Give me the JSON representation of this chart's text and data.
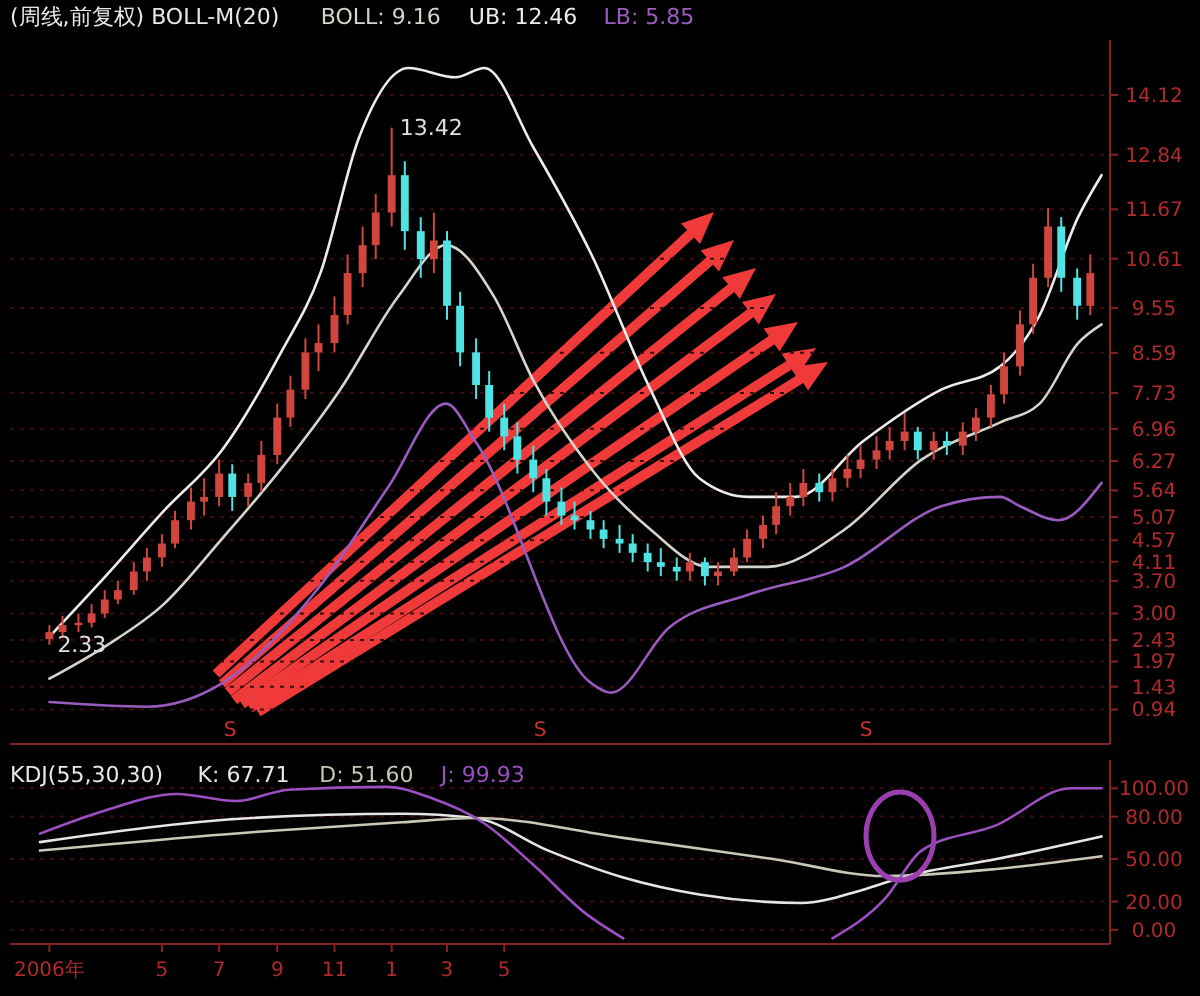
{
  "chart_data": [
    {
      "type": "candlestick",
      "title": "(周线,前复权) BOLL-M(20)",
      "legend": "top left",
      "grid": "y",
      "tick_labels": "y",
      "xlim": [
        "2005-11-20",
        "2009-02-05"
      ],
      "ylim": [
        0.2,
        15.3
      ],
      "yticks": [
        {
          "value": 0.94,
          "label": "0.94"
        },
        {
          "value": 1.43,
          "label": "1.43"
        },
        {
          "value": 1.97,
          "label": "1.97"
        },
        {
          "value": 2.43,
          "label": "2.43"
        },
        {
          "value": 3,
          "label": "3.00"
        },
        {
          "value": 3.7,
          "label": "3.70"
        },
        {
          "value": 4.11,
          "label": "4.11"
        },
        {
          "value": 4.57,
          "label": "4.57"
        },
        {
          "value": 5.07,
          "label": "5.07"
        },
        {
          "value": 5.64,
          "label": "5.64"
        },
        {
          "value": 6.27,
          "label": "6.27"
        },
        {
          "value": 6.96,
          "label": "6.96"
        },
        {
          "value": 7.73,
          "label": "7.73"
        },
        {
          "value": 8.59,
          "label": "8.59"
        },
        {
          "value": 9.55,
          "label": "9.55"
        },
        {
          "value": 10.61,
          "label": "10.61"
        },
        {
          "value": 11.67,
          "label": "11.67"
        },
        {
          "value": 12.84,
          "label": "12.84"
        },
        {
          "value": 14.12,
          "label": "14.12"
        }
      ],
      "x": [
        "2006-01-01",
        "2006-01-15",
        "2006-02-01",
        "2006-02-15",
        "2006-03-01",
        "2006-03-15",
        "2006-04-01",
        "2006-04-15",
        "2006-05-01",
        "2006-05-15",
        "2006-06-01",
        "2006-06-15",
        "2006-07-01",
        "2006-07-15",
        "2006-08-01",
        "2006-08-15",
        "2006-09-01",
        "2006-09-15",
        "2006-10-01",
        "2006-10-15",
        "2006-11-01",
        "2006-11-15",
        "2006-12-01",
        "2006-12-15",
        "2007-01-01",
        "2007-01-15",
        "2007-02-01",
        "2007-02-15",
        "2007-03-01",
        "2007-03-15",
        "2007-04-01",
        "2007-04-15",
        "2007-05-01",
        "2007-05-15",
        "2007-06-01",
        "2007-06-15",
        "2007-07-01",
        "2007-07-15",
        "2007-08-01",
        "2007-08-15",
        "2007-09-01",
        "2007-09-15",
        "2007-10-01",
        "2007-10-15",
        "2007-11-01",
        "2007-11-15",
        "2007-12-01",
        "2007-12-15",
        "2008-01-01",
        "2008-01-15",
        "2008-02-01",
        "2008-02-15",
        "2008-03-01",
        "2008-03-15",
        "2008-04-01",
        "2008-04-15",
        "2008-05-01",
        "2008-05-15",
        "2008-06-01",
        "2008-06-15",
        "2008-07-01",
        "2008-07-15",
        "2008-08-01",
        "2008-08-15",
        "2008-09-01",
        "2008-09-15",
        "2008-10-01",
        "2008-10-15",
        "2008-11-01",
        "2008-11-15",
        "2008-12-01",
        "2008-12-15",
        "2009-01-01",
        "2009-01-15"
      ],
      "ohlc": [
        [
          2.45,
          2.75,
          2.33,
          2.6
        ],
        [
          2.6,
          2.95,
          2.5,
          2.75
        ],
        [
          2.75,
          3.0,
          2.6,
          2.8
        ],
        [
          2.8,
          3.2,
          2.7,
          3.0
        ],
        [
          3.0,
          3.5,
          2.9,
          3.3
        ],
        [
          3.3,
          3.7,
          3.2,
          3.5
        ],
        [
          3.5,
          4.1,
          3.4,
          3.9
        ],
        [
          3.9,
          4.4,
          3.7,
          4.2
        ],
        [
          4.2,
          4.7,
          4.0,
          4.5
        ],
        [
          4.5,
          5.2,
          4.4,
          5.0
        ],
        [
          5.0,
          5.7,
          4.8,
          5.4
        ],
        [
          5.4,
          5.9,
          5.1,
          5.5
        ],
        [
          5.5,
          6.3,
          5.3,
          6.0
        ],
        [
          6.0,
          6.2,
          5.2,
          5.5
        ],
        [
          5.5,
          6.0,
          5.3,
          5.8
        ],
        [
          5.8,
          6.7,
          5.6,
          6.4
        ],
        [
          6.4,
          7.5,
          6.2,
          7.2
        ],
        [
          7.2,
          8.1,
          7.0,
          7.8
        ],
        [
          7.8,
          8.9,
          7.6,
          8.6
        ],
        [
          8.6,
          9.2,
          8.2,
          8.8
        ],
        [
          8.8,
          9.8,
          8.6,
          9.4
        ],
        [
          9.4,
          10.7,
          9.2,
          10.3
        ],
        [
          10.3,
          11.3,
          10.0,
          10.9
        ],
        [
          10.9,
          12.0,
          10.6,
          11.6
        ],
        [
          11.6,
          13.42,
          11.3,
          12.4
        ],
        [
          12.4,
          12.7,
          10.8,
          11.2
        ],
        [
          11.2,
          11.5,
          10.2,
          10.6
        ],
        [
          10.6,
          11.6,
          10.3,
          11.0
        ],
        [
          11.0,
          11.2,
          9.3,
          9.6
        ],
        [
          9.6,
          9.9,
          8.3,
          8.6
        ],
        [
          8.6,
          8.9,
          7.6,
          7.9
        ],
        [
          7.9,
          8.2,
          6.9,
          7.2
        ],
        [
          7.2,
          7.5,
          6.5,
          6.8
        ],
        [
          6.8,
          7.1,
          6.0,
          6.3
        ],
        [
          6.3,
          6.6,
          5.6,
          5.9
        ],
        [
          5.9,
          6.1,
          5.1,
          5.4
        ],
        [
          5.4,
          5.7,
          4.9,
          5.1
        ],
        [
          5.1,
          5.4,
          4.8,
          5.0
        ],
        [
          5.0,
          5.2,
          4.6,
          4.8
        ],
        [
          4.8,
          5.0,
          4.4,
          4.6
        ],
        [
          4.6,
          4.9,
          4.3,
          4.5
        ],
        [
          4.5,
          4.7,
          4.1,
          4.3
        ],
        [
          4.3,
          4.5,
          3.9,
          4.1
        ],
        [
          4.1,
          4.4,
          3.8,
          4.0
        ],
        [
          4.0,
          4.2,
          3.7,
          3.9
        ],
        [
          3.9,
          4.3,
          3.7,
          4.1
        ],
        [
          4.1,
          4.2,
          3.6,
          3.8
        ],
        [
          3.8,
          4.1,
          3.6,
          3.9
        ],
        [
          3.9,
          4.4,
          3.8,
          4.2
        ],
        [
          4.2,
          4.8,
          4.1,
          4.6
        ],
        [
          4.6,
          5.1,
          4.4,
          4.9
        ],
        [
          4.9,
          5.6,
          4.7,
          5.3
        ],
        [
          5.3,
          5.8,
          5.1,
          5.5
        ],
        [
          5.5,
          6.1,
          5.3,
          5.8
        ],
        [
          5.8,
          6.0,
          5.4,
          5.6
        ],
        [
          5.6,
          6.1,
          5.4,
          5.9
        ],
        [
          5.9,
          6.4,
          5.7,
          6.1
        ],
        [
          6.1,
          6.6,
          5.9,
          6.3
        ],
        [
          6.3,
          6.8,
          6.1,
          6.5
        ],
        [
          6.5,
          7.0,
          6.3,
          6.7
        ],
        [
          6.7,
          7.3,
          6.5,
          6.9
        ],
        [
          6.9,
          7.0,
          6.3,
          6.5
        ],
        [
          6.5,
          6.9,
          6.3,
          6.7
        ],
        [
          6.7,
          6.9,
          6.4,
          6.6
        ],
        [
          6.6,
          7.1,
          6.4,
          6.9
        ],
        [
          6.9,
          7.4,
          6.7,
          7.2
        ],
        [
          7.2,
          7.9,
          7.0,
          7.7
        ],
        [
          7.7,
          8.6,
          7.5,
          8.3
        ],
        [
          8.3,
          9.5,
          8.1,
          9.2
        ],
        [
          9.2,
          10.5,
          9.0,
          10.2
        ],
        [
          10.2,
          11.7,
          10.0,
          11.3
        ],
        [
          11.3,
          11.5,
          9.9,
          10.2
        ],
        [
          10.2,
          10.4,
          9.3,
          9.6
        ],
        [
          9.6,
          10.7,
          9.4,
          10.3
        ]
      ],
      "series": [
        {
          "name": "BOLL: 9.16",
          "type": "line",
          "color": "#d4d4cc",
          "x": [
            "2006-01-01",
            "2006-03-02",
            "2006-05-03",
            "2006-07-04",
            "2006-09-05",
            "2006-11-07",
            "2007-01-08",
            "2007-02-28",
            "2007-04-20",
            "2007-06-01",
            "2007-08-02",
            "2007-10-04",
            "2007-12-05",
            "2008-02-06",
            "2008-04-28",
            "2008-07-19",
            "2008-10-11",
            "2008-11-22",
            "2009-01-02",
            "2009-01-27"
          ],
          "values": [
            1.6,
            2.3,
            3.2,
            4.6,
            6.1,
            7.8,
            9.8,
            10.9,
            9.8,
            8.0,
            6.1,
            4.8,
            4.0,
            4.0,
            4.8,
            6.3,
            7.1,
            7.5,
            8.8,
            9.2
          ]
        },
        {
          "name": "UB: 12.46",
          "type": "line",
          "color": "#ececec",
          "x": [
            "2006-01-01",
            "2006-03-02",
            "2006-05-03",
            "2006-07-04",
            "2006-09-05",
            "2006-10-17",
            "2006-11-27",
            "2007-01-19",
            "2007-03-10",
            "2007-04-10",
            "2007-06-01",
            "2007-08-02",
            "2007-10-04",
            "2007-11-25",
            "2008-01-16",
            "2008-03-07",
            "2008-05-18",
            "2008-08-09",
            "2008-10-11",
            "2008-11-22",
            "2009-01-02",
            "2009-01-27"
          ],
          "values": [
            2.5,
            3.8,
            5.2,
            6.5,
            8.6,
            10.3,
            13.2,
            14.7,
            14.5,
            14.7,
            13.0,
            10.7,
            7.8,
            5.9,
            5.5,
            5.5,
            6.7,
            7.8,
            8.3,
            9.4,
            11.5,
            12.4
          ]
        },
        {
          "name": "LB: 5.85",
          "type": "line",
          "color": "#9a5bbf",
          "x": [
            "2006-01-01",
            "2006-04-15",
            "2006-07-04",
            "2006-10-17",
            "2006-12-28",
            "2007-02-28",
            "2007-03-31",
            "2007-08-02",
            "2007-08-23",
            "2007-10-24",
            "2008-01-16",
            "2008-04-28",
            "2008-08-09",
            "2008-10-11",
            "2008-11-01",
            "2008-12-12",
            "2009-01-27"
          ],
          "values": [
            1.1,
            1.0,
            1.5,
            3.6,
            5.7,
            7.5,
            6.7,
            1.5,
            1.3,
            2.7,
            3.4,
            4.0,
            5.3,
            5.5,
            5.3,
            5.0,
            5.8
          ]
        }
      ],
      "annotations": [
        {
          "text": "13.42",
          "x": "2007-01-01",
          "y": 13.42
        },
        {
          "text": "2.33",
          "x": "2006-01-01",
          "y": 2.33
        },
        "S",
        "S",
        "S"
      ]
    },
    {
      "type": "line",
      "title": "KDJ(55,30,30)",
      "legend": "top left",
      "grid": "y",
      "xlim": [
        "2005-11-20",
        "2009-02-05"
      ],
      "ylim": [
        -10,
        120
      ],
      "xticks": [
        {
          "value": "2006-01-01",
          "label": "2006年"
        },
        {
          "value": "2006-05-01",
          "label": "5"
        },
        {
          "value": "2006-07-01",
          "label": "7"
        },
        {
          "value": "2006-09-01",
          "label": "9"
        },
        {
          "value": "2006-11-01",
          "label": "11"
        },
        {
          "value": "2007-01-01",
          "label": "1"
        },
        {
          "value": "2007-03-01",
          "label": "3"
        },
        {
          "value": "2007-05-01",
          "label": "5"
        }
      ],
      "yticks": [
        {
          "value": 0,
          "label": "0.00"
        },
        {
          "value": 20,
          "label": "20.00"
        },
        {
          "value": 50,
          "label": "50.00"
        },
        {
          "value": 80,
          "label": "80.00"
        },
        {
          "value": 100,
          "label": "100.00"
        }
      ],
      "series": [
        {
          "name": "K: 67.71",
          "color": "#e6e6e6",
          "x": [
            "2005-12-22",
            "2006-08-05",
            "2007-01-12",
            "2007-03-31",
            "2007-06-17",
            "2007-09-05",
            "2007-11-25",
            "2008-03-13",
            "2008-05-16",
            "2008-07-03",
            "2008-10-07",
            "2009-01-27"
          ],
          "values": [
            62,
            79,
            82,
            79,
            56,
            37,
            25,
            19,
            28,
            38,
            50,
            66
          ]
        },
        {
          "name": "D: 51.60",
          "color": "#c8c8b4",
          "x": [
            "2005-12-22",
            "2006-08-05",
            "2007-01-12",
            "2007-03-31",
            "2007-09-05",
            "2008-02-12",
            "2008-06-10",
            "2008-10-07",
            "2009-01-27"
          ],
          "values": [
            56,
            69,
            76,
            79,
            65,
            50,
            38,
            43,
            52
          ]
        },
        {
          "name": "J: 99.93",
          "color": "#9b4fc0",
          "x": [
            "2005-12-22",
            "2006-02-28",
            "2006-05-17",
            "2006-07-19",
            "2006-09-13",
            "2006-12-26",
            "2007-02-13",
            "2007-04-08",
            "2007-06-01",
            "2007-07-26",
            "2007-09-05",
            "2007-12-01",
            "2008-04-15",
            "2008-06-10",
            "2008-07-19",
            "2008-10-07",
            "2008-12-25",
            "2009-01-27"
          ],
          "values": [
            68,
            84,
            96,
            91,
            99,
            101,
            93,
            76,
            46,
            12,
            -6,
            null,
            -6,
            22,
            56,
            74,
            100,
            100
          ]
        }
      ]
    }
  ]
}
